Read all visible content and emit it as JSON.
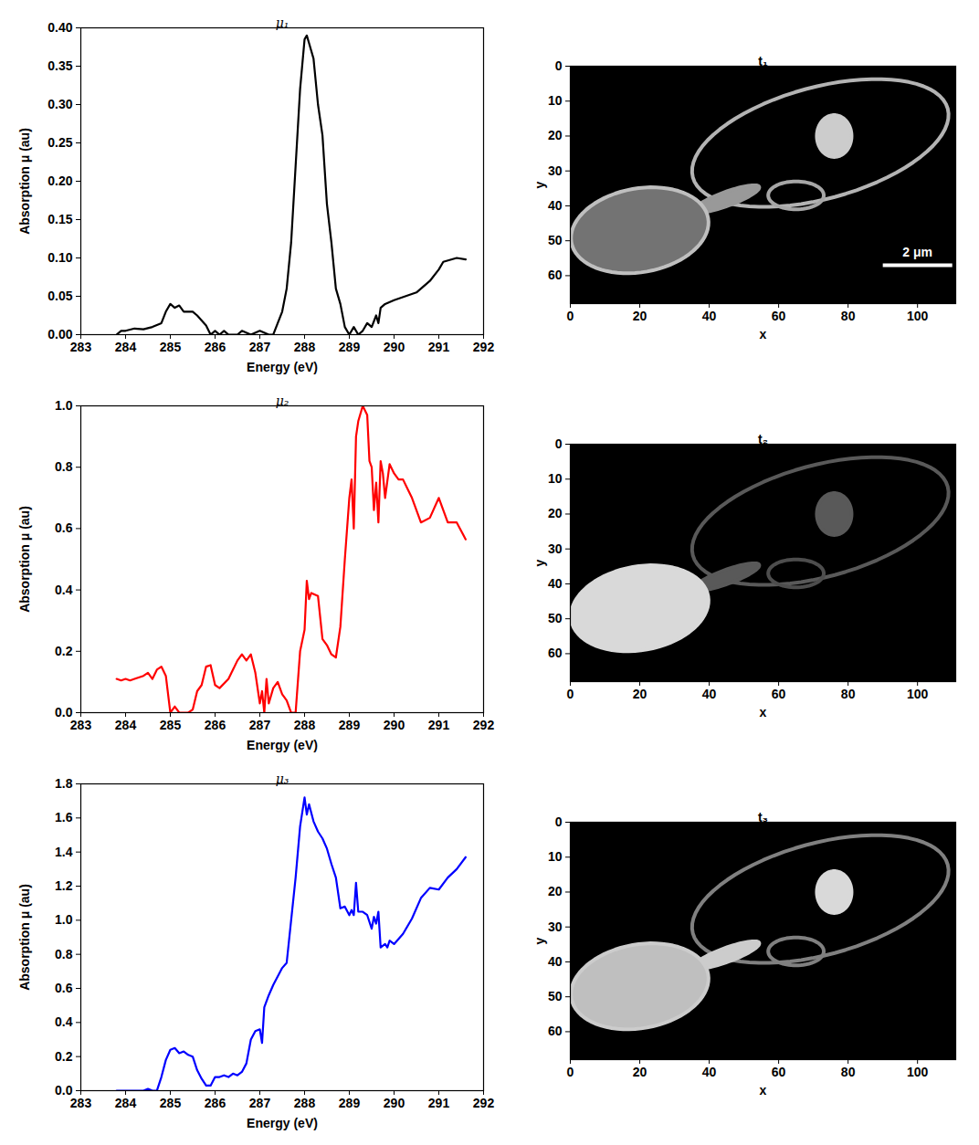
{
  "chart_data": [
    {
      "type": "line",
      "title": "μ₁",
      "x_label": "Energy (eV)",
      "y_label": "Absorption μ (au)",
      "color": "#000000",
      "x": [
        283.8,
        283.9,
        284.0,
        284.2,
        284.4,
        284.6,
        284.8,
        284.9,
        285.0,
        285.1,
        285.2,
        285.3,
        285.5,
        285.6,
        285.8,
        285.9,
        286.0,
        286.1,
        286.2,
        286.3,
        286.5,
        286.6,
        286.8,
        287.0,
        287.2,
        287.3,
        287.4,
        287.5,
        287.6,
        287.7,
        287.8,
        287.9,
        288.0,
        288.05,
        288.1,
        288.2,
        288.3,
        288.4,
        288.5,
        288.6,
        288.7,
        288.8,
        288.9,
        289.0,
        289.1,
        289.2,
        289.3,
        289.4,
        289.5,
        289.6,
        289.65,
        289.7,
        289.8,
        290.0,
        290.5,
        290.8,
        291.0,
        291.1,
        291.4,
        291.6
      ],
      "values": [
        0,
        0.005,
        0.005,
        0.008,
        0.007,
        0.01,
        0.015,
        0.03,
        0.04,
        0.035,
        0.038,
        0.03,
        0.03,
        0.025,
        0.012,
        0,
        0.005,
        0,
        0.005,
        0,
        0,
        0.005,
        0,
        0.005,
        0,
        0,
        0.015,
        0.03,
        0.06,
        0.12,
        0.22,
        0.32,
        0.385,
        0.39,
        0.38,
        0.36,
        0.3,
        0.26,
        0.17,
        0.12,
        0.06,
        0.04,
        0.01,
        0,
        0.01,
        0,
        0.005,
        0.015,
        0.01,
        0.025,
        0.015,
        0.035,
        0.04,
        0.045,
        0.055,
        0.07,
        0.085,
        0.095,
        0.1,
        0.098
      ],
      "xlim": [
        283,
        292
      ],
      "xticks": [
        283,
        284,
        285,
        286,
        287,
        288,
        289,
        290,
        291,
        292
      ],
      "ylim": [
        0,
        0.4
      ],
      "yticks": [
        {
          "value": 0,
          "label": "0.00"
        },
        {
          "value": 0.05,
          "label": "0.05"
        },
        {
          "value": 0.1,
          "label": "0.10"
        },
        {
          "value": 0.15,
          "label": "0.15"
        },
        {
          "value": 0.2,
          "label": "0.20"
        },
        {
          "value": 0.25,
          "label": "0.25"
        },
        {
          "value": 0.3,
          "label": "0.30"
        },
        {
          "value": 0.35,
          "label": "0.35"
        },
        {
          "value": 0.4,
          "label": "0.40"
        }
      ]
    },
    {
      "type": "image",
      "title": "t₁",
      "x_label": "x",
      "y_label": "y",
      "xlim": [
        0,
        111
      ],
      "xticks": [
        0,
        20,
        40,
        60,
        80,
        100
      ],
      "ylim": [
        0,
        68
      ],
      "yticks": [
        0,
        10,
        20,
        30,
        40,
        50,
        60
      ],
      "features": [
        {
          "cx": 72,
          "cy": 22,
          "rx": 38,
          "ry": 16,
          "angle": -15,
          "fill": 0,
          "edge": 0.7
        },
        {
          "cx": 65,
          "cy": 37,
          "rx": 8,
          "ry": 4,
          "angle": 0,
          "fill": 0,
          "edge": 0.65
        },
        {
          "cx": 45,
          "cy": 38,
          "rx": 10,
          "ry": 2,
          "angle": -20,
          "fill": 0.6,
          "edge": 0.6
        },
        {
          "cx": 20,
          "cy": 47,
          "rx": 20,
          "ry": 12,
          "angle": -10,
          "fill": 0.45,
          "edge": 0.75
        },
        {
          "cx": 76,
          "cy": 20,
          "rx": 5,
          "ry": 6,
          "angle": 0,
          "fill": 0.8,
          "edge": 0.8
        }
      ],
      "scale_bar": {
        "label": "2 μm",
        "x": [
          90,
          110
        ],
        "y": 57
      }
    },
    {
      "type": "line",
      "title": "μ₂",
      "x_label": "Energy (eV)",
      "y_label": "Absorption μ (au)",
      "color": "#ff0000",
      "x": [
        283.8,
        283.9,
        284.0,
        284.1,
        284.2,
        284.4,
        284.5,
        284.6,
        284.7,
        284.8,
        284.9,
        285.0,
        285.1,
        285.2,
        285.4,
        285.5,
        285.6,
        285.7,
        285.8,
        285.9,
        286.0,
        286.1,
        286.3,
        286.5,
        286.6,
        286.7,
        286.8,
        286.9,
        287.0,
        287.05,
        287.1,
        287.15,
        287.2,
        287.3,
        287.4,
        287.5,
        287.6,
        287.7,
        287.8,
        287.9,
        288.0,
        288.05,
        288.1,
        288.15,
        288.3,
        288.4,
        288.5,
        288.6,
        288.7,
        288.8,
        288.9,
        289.0,
        289.05,
        289.1,
        289.15,
        289.2,
        289.3,
        289.4,
        289.45,
        289.5,
        289.55,
        289.6,
        289.65,
        289.7,
        289.75,
        289.8,
        289.9,
        290.0,
        290.1,
        290.2,
        290.3,
        290.4,
        290.6,
        290.8,
        291.0,
        291.2,
        291.4,
        291.6
      ],
      "values": [
        0.11,
        0.105,
        0.11,
        0.105,
        0.11,
        0.12,
        0.13,
        0.11,
        0.14,
        0.15,
        0.12,
        0,
        0.02,
        0,
        0,
        0.01,
        0.07,
        0.09,
        0.15,
        0.155,
        0.09,
        0.08,
        0.11,
        0.17,
        0.19,
        0.17,
        0.19,
        0.13,
        0.03,
        0.07,
        0,
        0.11,
        0.03,
        0.08,
        0.1,
        0.06,
        0.04,
        0,
        0,
        0.2,
        0.27,
        0.43,
        0.37,
        0.39,
        0.38,
        0.24,
        0.22,
        0.19,
        0.18,
        0.28,
        0.5,
        0.7,
        0.76,
        0.6,
        0.9,
        0.95,
        1.0,
        0.97,
        0.82,
        0.8,
        0.66,
        0.75,
        0.62,
        0.82,
        0.78,
        0.7,
        0.81,
        0.78,
        0.76,
        0.76,
        0.73,
        0.7,
        0.62,
        0.635,
        0.7,
        0.62,
        0.62,
        0.565
      ],
      "xlim": [
        283,
        292
      ],
      "xticks": [
        283,
        284,
        285,
        286,
        287,
        288,
        289,
        290,
        291,
        292
      ],
      "ylim": [
        0,
        1
      ],
      "yticks": [
        {
          "value": 0,
          "label": "0.0"
        },
        {
          "value": 0.2,
          "label": "0.2"
        },
        {
          "value": 0.4,
          "label": "0.4"
        },
        {
          "value": 0.6,
          "label": "0.6"
        },
        {
          "value": 0.8,
          "label": "0.8"
        },
        {
          "value": 1,
          "label": "1.0"
        }
      ]
    },
    {
      "type": "image",
      "title": "t₂",
      "x_label": "x",
      "y_label": "y",
      "xlim": [
        0,
        111
      ],
      "xticks": [
        0,
        20,
        40,
        60,
        80,
        100
      ],
      "ylim": [
        0,
        68
      ],
      "yticks": [
        0,
        10,
        20,
        30,
        40,
        50,
        60
      ],
      "features": [
        {
          "cx": 72,
          "cy": 22,
          "rx": 38,
          "ry": 16,
          "angle": -15,
          "fill": 0,
          "edge": 0.35
        },
        {
          "cx": 65,
          "cy": 37,
          "rx": 8,
          "ry": 4,
          "angle": 0,
          "fill": 0,
          "edge": 0.3
        },
        {
          "cx": 45,
          "cy": 38,
          "rx": 10,
          "ry": 2,
          "angle": -20,
          "fill": 0.35,
          "edge": 0.35
        },
        {
          "cx": 20,
          "cy": 47,
          "rx": 20,
          "ry": 12,
          "angle": -10,
          "fill": 0.85,
          "edge": 0.85
        },
        {
          "cx": 76,
          "cy": 20,
          "rx": 5,
          "ry": 6,
          "angle": 0,
          "fill": 0.35,
          "edge": 0.35
        }
      ]
    },
    {
      "type": "line",
      "title": "μ₃",
      "x_label": "Energy (eV)",
      "y_label": "Absorption μ (au)",
      "color": "#0000ff",
      "x": [
        283.8,
        284.0,
        284.2,
        284.4,
        284.5,
        284.6,
        284.7,
        284.8,
        284.9,
        285.0,
        285.1,
        285.2,
        285.3,
        285.4,
        285.5,
        285.6,
        285.7,
        285.8,
        285.9,
        286.0,
        286.1,
        286.2,
        286.3,
        286.4,
        286.5,
        286.6,
        286.7,
        286.8,
        286.9,
        287.0,
        287.05,
        287.1,
        287.2,
        287.3,
        287.5,
        287.6,
        287.7,
        287.8,
        287.9,
        288.0,
        288.05,
        288.1,
        288.2,
        288.3,
        288.4,
        288.5,
        288.6,
        288.7,
        288.8,
        288.9,
        289.0,
        289.05,
        289.1,
        289.15,
        289.2,
        289.3,
        289.4,
        289.5,
        289.55,
        289.6,
        289.65,
        289.7,
        289.8,
        289.85,
        289.9,
        290.0,
        290.2,
        290.4,
        290.6,
        290.8,
        291.0,
        291.2,
        291.4,
        291.6
      ],
      "values": [
        0,
        0,
        0,
        0,
        0.01,
        0,
        0,
        0.08,
        0.18,
        0.24,
        0.25,
        0.22,
        0.23,
        0.21,
        0.2,
        0.12,
        0.07,
        0.03,
        0.03,
        0.08,
        0.08,
        0.09,
        0.08,
        0.1,
        0.09,
        0.11,
        0.16,
        0.3,
        0.35,
        0.36,
        0.28,
        0.49,
        0.56,
        0.62,
        0.72,
        0.75,
        1.0,
        1.25,
        1.55,
        1.72,
        1.62,
        1.68,
        1.58,
        1.52,
        1.48,
        1.42,
        1.33,
        1.25,
        1.07,
        1.08,
        1.03,
        1.06,
        1.03,
        1.22,
        1.05,
        1.05,
        1.03,
        0.95,
        1.02,
        0.98,
        1.05,
        0.84,
        0.86,
        0.84,
        0.88,
        0.86,
        0.92,
        1.01,
        1.13,
        1.19,
        1.18,
        1.25,
        1.3,
        1.37
      ],
      "xlim": [
        283,
        292
      ],
      "xticks": [
        283,
        284,
        285,
        286,
        287,
        288,
        289,
        290,
        291,
        292
      ],
      "ylim": [
        0,
        1.8
      ],
      "yticks": [
        {
          "value": 0,
          "label": "0.0"
        },
        {
          "value": 0.2,
          "label": "0.2"
        },
        {
          "value": 0.4,
          "label": "0.4"
        },
        {
          "value": 0.6,
          "label": "0.6"
        },
        {
          "value": 0.8,
          "label": "0.8"
        },
        {
          "value": 1,
          "label": "1.0"
        },
        {
          "value": 1.2,
          "label": "1.2"
        },
        {
          "value": 1.4,
          "label": "1.4"
        },
        {
          "value": 1.6,
          "label": "1.6"
        },
        {
          "value": 1.8,
          "label": "1.8"
        }
      ]
    },
    {
      "type": "image",
      "title": "t₃",
      "x_label": "x",
      "y_label": "y",
      "xlim": [
        0,
        111
      ],
      "xticks": [
        0,
        20,
        40,
        60,
        80,
        100
      ],
      "ylim": [
        0,
        68
      ],
      "yticks": [
        0,
        10,
        20,
        30,
        40,
        50,
        60
      ],
      "features": [
        {
          "cx": 72,
          "cy": 22,
          "rx": 38,
          "ry": 16,
          "angle": -15,
          "fill": 0,
          "edge": 0.5
        },
        {
          "cx": 65,
          "cy": 37,
          "rx": 8,
          "ry": 4,
          "angle": 0,
          "fill": 0,
          "edge": 0.5
        },
        {
          "cx": 45,
          "cy": 38,
          "rx": 10,
          "ry": 2,
          "angle": -20,
          "fill": 0.8,
          "edge": 0.8
        },
        {
          "cx": 20,
          "cy": 47,
          "rx": 20,
          "ry": 12,
          "angle": -10,
          "fill": 0.75,
          "edge": 0.8
        },
        {
          "cx": 76,
          "cy": 20,
          "rx": 5,
          "ry": 6,
          "angle": 0,
          "fill": 0.85,
          "edge": 0.85
        }
      ]
    }
  ]
}
